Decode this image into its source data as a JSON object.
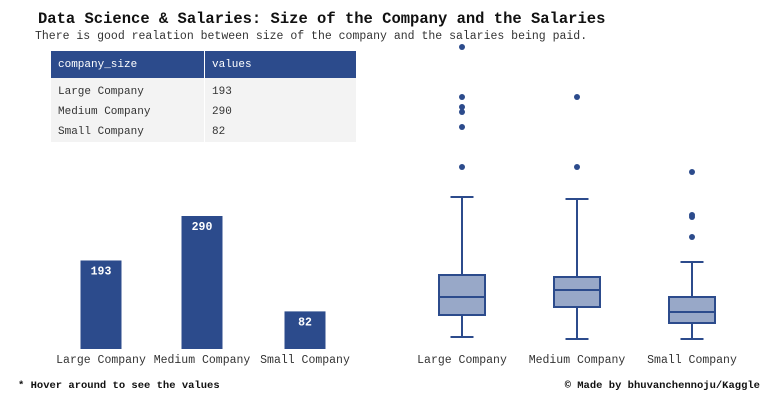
{
  "title": "Data Science & Salaries: Size of the Company and the Salaries",
  "subtitle": "There is good realation between size of the company and the salaries being paid.",
  "colors": {
    "accent": "#2c4b8c",
    "box_fill": "#98a8c8",
    "table_row": "#f3f3f3"
  },
  "table": {
    "headers": [
      "company_size",
      "values"
    ],
    "rows": [
      [
        "Large Company",
        "193"
      ],
      [
        "Medium Company",
        "290"
      ],
      [
        "Small Company",
        "82"
      ]
    ]
  },
  "chart_data": [
    {
      "type": "bar",
      "categories": [
        "Large Company",
        "Medium Company",
        "Small Company"
      ],
      "values": [
        193,
        290,
        82
      ],
      "data_labels": [
        "193",
        "290",
        "82"
      ],
      "ylim": [
        0,
        290
      ],
      "grid": false
    },
    {
      "type": "box",
      "categories": [
        "Large Company",
        "Medium Company",
        "Small Company"
      ],
      "boxes": [
        {
          "whislo": 0.2,
          "q1": 0.42,
          "med": 0.6,
          "q3": 0.82,
          "whishi": 1.6,
          "fliers": [
            1.9,
            2.3,
            2.45,
            2.5,
            2.6,
            3.1
          ]
        },
        {
          "whislo": 0.18,
          "q1": 0.5,
          "med": 0.67,
          "q3": 0.8,
          "whishi": 1.58,
          "fliers": [
            1.9,
            2.6
          ]
        },
        {
          "whislo": 0.18,
          "q1": 0.34,
          "med": 0.45,
          "q3": 0.6,
          "whishi": 0.95,
          "fliers": [
            1.2,
            1.4,
            1.42,
            1.85
          ]
        }
      ],
      "ylim": [
        0,
        3.3
      ],
      "grid": false
    }
  ],
  "footnote": "* Hover around to see the values",
  "credit": "© Made by bhuvanchennoju/Kaggle"
}
